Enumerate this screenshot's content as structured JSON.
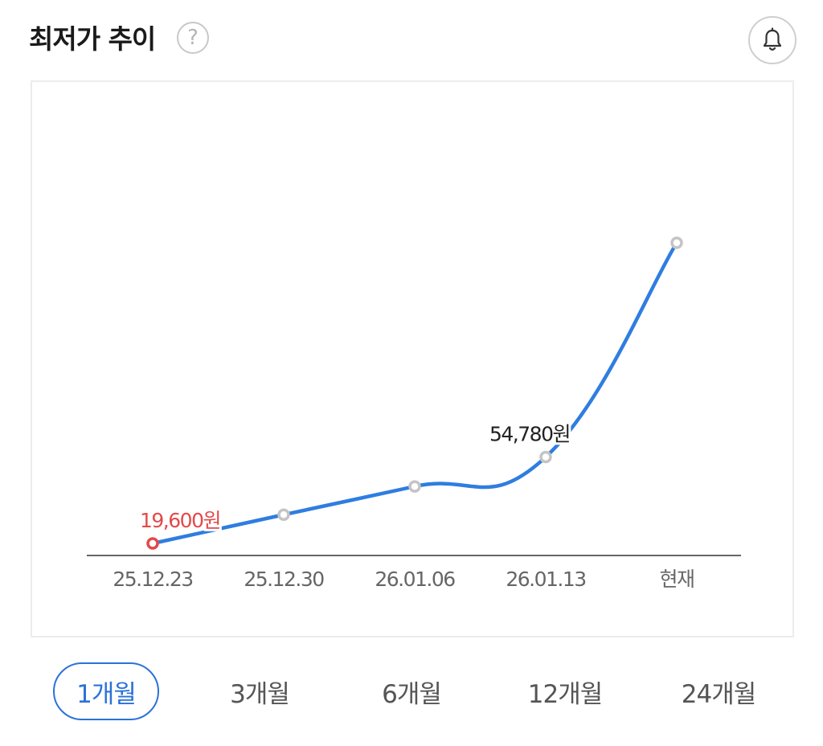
{
  "header": {
    "title": "최저가 추이",
    "help_symbol": "?",
    "help_icon": "question-circle-icon",
    "alert_icon": "bell-icon"
  },
  "chart_data": {
    "type": "line",
    "categories": [
      "25.12.23",
      "25.12.30",
      "26.01.06",
      "26.01.13",
      "현재"
    ],
    "values": [
      19600,
      31300,
      42800,
      54780,
      142000
    ],
    "series_color": "#2f7de0",
    "marker_color": "#c4c4c4",
    "low_marker_color": "#e24a4a",
    "annotations": [
      {
        "index": 0,
        "label": "19,600원",
        "color": "#e24a4a"
      },
      {
        "index": 3,
        "label": "54,780원",
        "color": "#222222"
      }
    ],
    "grid": false,
    "legend": "none"
  },
  "period_tabs": [
    {
      "label": "1개월",
      "active": true
    },
    {
      "label": "3개월",
      "active": false
    },
    {
      "label": "6개월",
      "active": false
    },
    {
      "label": "12개월",
      "active": false
    },
    {
      "label": "24개월",
      "active": false
    }
  ],
  "colors": {
    "accent": "#2a72d8",
    "line": "#2f7de0",
    "low": "#e24a4a"
  }
}
